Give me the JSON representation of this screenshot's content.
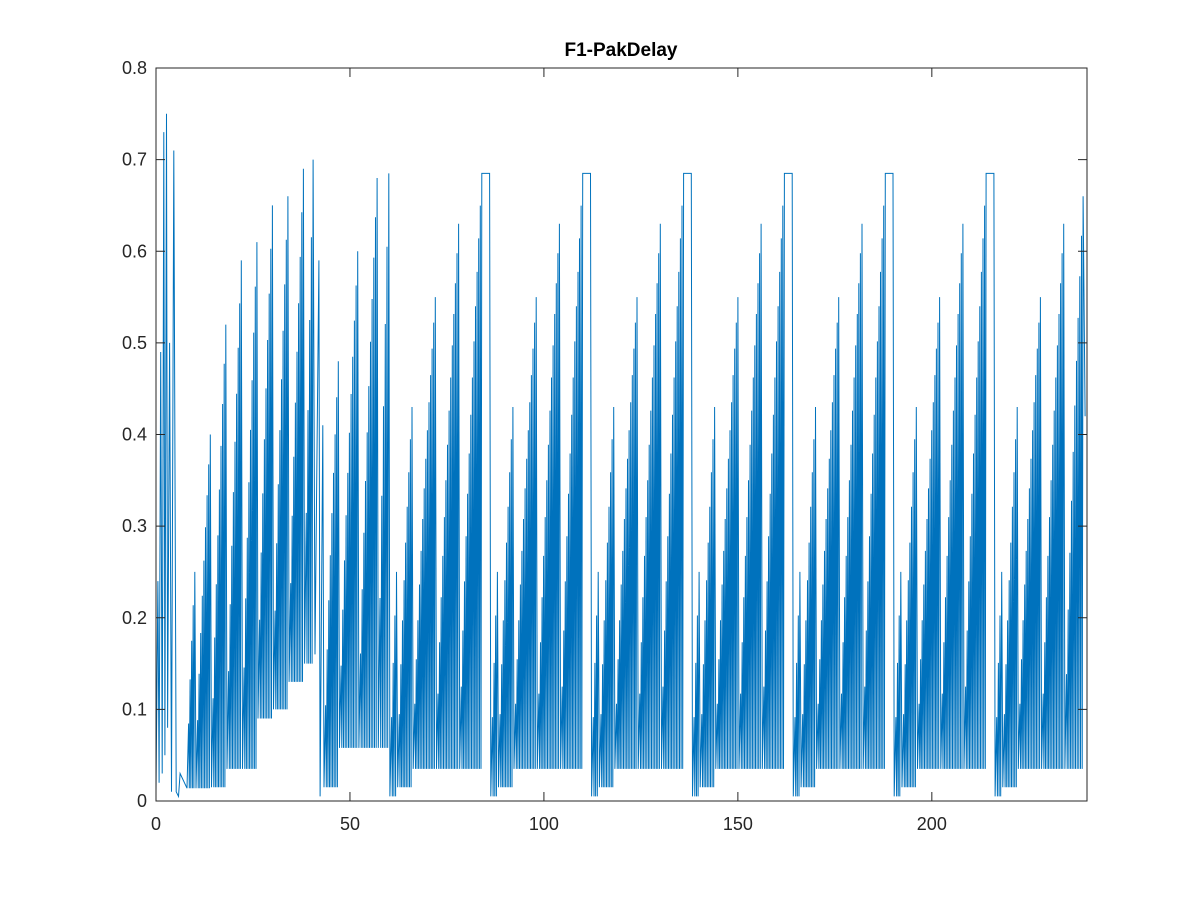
{
  "chart_data": {
    "type": "line",
    "title": "F1-PakDelay",
    "xlabel": "",
    "ylabel": "",
    "xlim": [
      0,
      240
    ],
    "ylim": [
      0,
      0.8
    ],
    "x_ticks": [
      0,
      50,
      100,
      150,
      200
    ],
    "x_tick_labels": [
      "0",
      "50",
      "100",
      "150",
      "200"
    ],
    "y_ticks": [
      0,
      0.1,
      0.2,
      0.3,
      0.4,
      0.5,
      0.6,
      0.7,
      0.8
    ],
    "y_tick_labels": [
      "0",
      "0.1",
      "0.2",
      "0.3",
      "0.4",
      "0.5",
      "0.6",
      "0.7",
      "0.8"
    ],
    "grid": false,
    "legend": "none",
    "line_color": "#0072BD",
    "series": [
      {
        "values_description_points": [
          [
            0.0,
            0.01
          ],
          [
            0.5,
            0.24
          ],
          [
            0.8,
            0.02
          ],
          [
            1.2,
            0.49
          ],
          [
            1.6,
            0.03
          ],
          [
            2.0,
            0.73
          ],
          [
            2.3,
            0.05
          ],
          [
            2.7,
            0.75
          ],
          [
            3.0,
            0.08
          ],
          [
            3.5,
            0.5
          ],
          [
            4.0,
            0.01
          ],
          [
            4.6,
            0.71
          ],
          [
            5.2,
            0.01
          ],
          [
            5.8,
            0.005
          ],
          [
            6.2,
            0.03
          ],
          [
            8.0,
            0.014
          ],
          [
            10.0,
            0.25
          ],
          [
            10.3,
            0.014
          ],
          [
            14.0,
            0.4
          ],
          [
            14.3,
            0.015
          ],
          [
            18.0,
            0.52
          ],
          [
            18.3,
            0.035
          ],
          [
            22.0,
            0.59
          ],
          [
            22.3,
            0.035
          ],
          [
            26.0,
            0.61
          ],
          [
            26.3,
            0.09
          ],
          [
            30.0,
            0.65
          ],
          [
            30.3,
            0.1
          ],
          [
            34.0,
            0.66
          ],
          [
            34.3,
            0.13
          ],
          [
            38.0,
            0.69
          ],
          [
            38.3,
            0.15
          ],
          [
            40.5,
            0.7
          ],
          [
            41.0,
            0.16
          ],
          [
            42.0,
            0.59
          ],
          [
            42.3,
            0.005
          ],
          [
            43.0,
            0.41
          ],
          [
            43.3,
            0.015
          ],
          [
            47.0,
            0.48
          ],
          [
            47.3,
            0.058
          ],
          [
            52.0,
            0.6
          ],
          [
            52.3,
            0.058
          ],
          [
            57.0,
            0.68
          ],
          [
            57.3,
            0.058
          ],
          [
            60.0,
            0.685
          ],
          [
            60.3,
            0.005
          ],
          [
            62.0,
            0.25
          ],
          [
            62.3,
            0.015
          ],
          [
            66.0,
            0.43
          ],
          [
            66.3,
            0.035
          ],
          [
            72.0,
            0.55
          ],
          [
            72.3,
            0.035
          ],
          [
            78.0,
            0.63
          ],
          [
            78.3,
            0.035
          ],
          [
            84.0,
            0.685
          ],
          [
            86.0,
            0.685
          ],
          [
            86.3,
            0.005
          ],
          [
            88.0,
            0.25
          ],
          [
            88.3,
            0.015
          ],
          [
            92.0,
            0.43
          ],
          [
            92.3,
            0.035
          ],
          [
            98.0,
            0.55
          ],
          [
            98.3,
            0.035
          ],
          [
            104.0,
            0.63
          ],
          [
            104.3,
            0.035
          ],
          [
            110.0,
            0.685
          ],
          [
            112.0,
            0.685
          ],
          [
            112.3,
            0.005
          ],
          [
            114.0,
            0.25
          ],
          [
            114.3,
            0.015
          ],
          [
            118.0,
            0.43
          ],
          [
            118.3,
            0.035
          ],
          [
            124.0,
            0.55
          ],
          [
            124.3,
            0.035
          ],
          [
            130.0,
            0.63
          ],
          [
            130.3,
            0.035
          ],
          [
            136.0,
            0.685
          ],
          [
            138.0,
            0.685
          ],
          [
            138.3,
            0.005
          ],
          [
            140.0,
            0.25
          ],
          [
            140.3,
            0.015
          ],
          [
            144.0,
            0.43
          ],
          [
            144.3,
            0.035
          ],
          [
            150.0,
            0.55
          ],
          [
            150.3,
            0.035
          ],
          [
            156.0,
            0.63
          ],
          [
            156.3,
            0.035
          ],
          [
            162.0,
            0.685
          ],
          [
            164.0,
            0.685
          ],
          [
            164.3,
            0.005
          ],
          [
            166.0,
            0.25
          ],
          [
            166.3,
            0.015
          ],
          [
            170.0,
            0.43
          ],
          [
            170.3,
            0.035
          ],
          [
            176.0,
            0.55
          ],
          [
            176.3,
            0.035
          ],
          [
            182.0,
            0.63
          ],
          [
            182.3,
            0.035
          ],
          [
            188.0,
            0.685
          ],
          [
            190.0,
            0.685
          ],
          [
            190.3,
            0.005
          ],
          [
            192.0,
            0.25
          ],
          [
            192.3,
            0.015
          ],
          [
            196.0,
            0.43
          ],
          [
            196.3,
            0.035
          ],
          [
            202.0,
            0.55
          ],
          [
            202.3,
            0.035
          ],
          [
            208.0,
            0.63
          ],
          [
            208.3,
            0.035
          ],
          [
            214.0,
            0.685
          ],
          [
            216.0,
            0.685
          ],
          [
            216.3,
            0.005
          ],
          [
            218.0,
            0.25
          ],
          [
            218.3,
            0.015
          ],
          [
            222.0,
            0.43
          ],
          [
            222.3,
            0.035
          ],
          [
            228.0,
            0.55
          ],
          [
            228.3,
            0.035
          ],
          [
            234.0,
            0.63
          ],
          [
            234.3,
            0.035
          ],
          [
            239.0,
            0.66
          ],
          [
            239.5,
            0.42
          ]
        ]
      }
    ]
  }
}
